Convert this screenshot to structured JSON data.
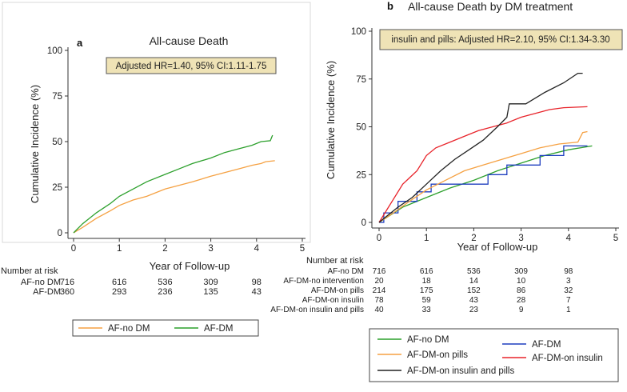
{
  "panel_a": {
    "letter": "a",
    "title": "All-cause Death",
    "hr_box": "Adjusted HR=1.40, 95% CI:1.11-1.75",
    "risk_header": "Number at risk",
    "risk_rows": [
      {
        "label": "AF-no DM",
        "values": [
          "716",
          "616",
          "536",
          "309",
          "98"
        ]
      },
      {
        "label": "AF-DM",
        "values": [
          "360",
          "293",
          "236",
          "135",
          "43"
        ]
      }
    ],
    "legend": [
      {
        "label": "AF-no DM",
        "color": "#f5a142"
      },
      {
        "label": "AF-DM",
        "color": "#2ca02c"
      }
    ]
  },
  "panel_b": {
    "letter": "b",
    "title": "All-cause Death by DM treatment",
    "hr_box": "insulin and pills: Adjusted HR=2.10, 95% CI:1.34-3.30",
    "risk_header": "Number at risk",
    "risk_rows": [
      {
        "label": "AF-no DM",
        "values": [
          "716",
          "616",
          "536",
          "309",
          "98"
        ]
      },
      {
        "label": "AF-DM-no intervention",
        "values": [
          "20",
          "18",
          "14",
          "10",
          "3"
        ]
      },
      {
        "label": "AF-DM-on pills",
        "values": [
          "214",
          "175",
          "152",
          "86",
          "32"
        ]
      },
      {
        "label": "AF-DM-on insulin",
        "values": [
          "78",
          "59",
          "43",
          "28",
          "7"
        ]
      },
      {
        "label": "AF-DM-on insulin and pills",
        "values": [
          "40",
          "33",
          "23",
          "9",
          "1"
        ]
      }
    ],
    "legend": [
      {
        "label": "AF-no DM",
        "color": "#2ca02c"
      },
      {
        "label": "AF-DM",
        "color": "#1f3fbf"
      },
      {
        "label": "AF-DM-on pills",
        "color": "#f5a142"
      },
      {
        "label": "AF-DM-on insulin",
        "color": "#e8232a"
      },
      {
        "label": "AF-DM-on insulin and pills",
        "color": "#222222"
      }
    ]
  },
  "chart_data": [
    {
      "type": "line",
      "title": "All-cause Death",
      "xlabel": "Year of Follow-up",
      "ylabel": "Cumulative Incidence (%)",
      "xlim": [
        0,
        5
      ],
      "ylim": [
        0,
        100
      ],
      "xticks": [
        "0",
        "1",
        "2",
        "3",
        "4",
        "5"
      ],
      "yticks": [
        "0",
        "25",
        "50",
        "75",
        "100"
      ],
      "series": [
        {
          "name": "AF-no DM",
          "color": "#f5a142",
          "x": [
            0,
            0.2,
            0.5,
            0.8,
            1.0,
            1.3,
            1.6,
            2.0,
            2.3,
            2.6,
            3.0,
            3.3,
            3.6,
            3.9,
            4.1,
            4.2,
            4.4
          ],
          "y": [
            0,
            3,
            8,
            12,
            15,
            18,
            20,
            24,
            26,
            28,
            31,
            33,
            35,
            37,
            38,
            39,
            39.5
          ]
        },
        {
          "name": "AF-DM",
          "color": "#2ca02c",
          "x": [
            0,
            0.2,
            0.5,
            0.8,
            1.0,
            1.3,
            1.6,
            2.0,
            2.3,
            2.6,
            3.0,
            3.3,
            3.6,
            3.9,
            4.1,
            4.3,
            4.35
          ],
          "y": [
            0,
            5,
            11,
            16,
            20,
            24,
            28,
            32,
            35,
            38,
            41,
            44,
            46,
            48,
            50,
            50.5,
            53.5
          ]
        }
      ]
    },
    {
      "type": "line",
      "title": "All-cause Death by DM treatment",
      "xlabel": "Year of Follow-up",
      "ylabel": "Cumulative Incidence (%)",
      "xlim": [
        0,
        5
      ],
      "ylim": [
        0,
        100
      ],
      "xticks": [
        "0",
        "1",
        "2",
        "3",
        "4",
        "5"
      ],
      "yticks": [
        "0",
        "25",
        "50",
        "75",
        "100"
      ],
      "series": [
        {
          "name": "AF-no DM",
          "color": "#2ca02c",
          "x": [
            0,
            0.5,
            1.0,
            1.5,
            2.0,
            2.5,
            3.0,
            3.5,
            4.0,
            4.5
          ],
          "y": [
            0,
            8,
            13,
            18,
            22,
            27,
            31,
            35,
            38,
            40
          ]
        },
        {
          "name": "AF-DM",
          "color": "#1f3fbf",
          "x": [
            0,
            0.1,
            0.1,
            0.4,
            0.4,
            0.8,
            0.8,
            1.1,
            1.1,
            1.6,
            1.6,
            2.3,
            2.3,
            2.7,
            2.7,
            3.4,
            3.4,
            3.9,
            3.9,
            4.4
          ],
          "y": [
            0,
            0,
            5,
            5,
            11,
            11,
            16,
            16,
            20,
            20,
            20,
            20,
            25,
            25,
            30,
            30,
            35,
            35,
            40,
            40
          ]
        },
        {
          "name": "AF-DM-on pills",
          "color": "#f5a142",
          "x": [
            0,
            0.3,
            0.7,
            1.0,
            1.4,
            1.8,
            2.2,
            2.6,
            3.0,
            3.4,
            3.8,
            4.2,
            4.3,
            4.4
          ],
          "y": [
            0,
            5,
            12,
            17,
            22,
            27,
            30,
            33,
            36,
            39,
            41,
            42,
            47,
            47.5
          ]
        },
        {
          "name": "AF-DM-on insulin",
          "color": "#e8232a",
          "x": [
            0,
            0.2,
            0.5,
            0.8,
            1.0,
            1.2,
            1.5,
            1.8,
            2.1,
            2.4,
            2.7,
            3.0,
            3.3,
            3.6,
            3.9,
            4.4
          ],
          "y": [
            0,
            8,
            20,
            27,
            35,
            39,
            42,
            45,
            48,
            50,
            52,
            55,
            57,
            59,
            60,
            60.5
          ]
        },
        {
          "name": "AF-DM-on insulin and pills",
          "color": "#222222",
          "x": [
            0,
            0.15,
            0.4,
            0.7,
            1.0,
            1.3,
            1.6,
            1.9,
            2.2,
            2.5,
            2.7,
            2.75,
            3.1,
            3.5,
            3.9,
            4.2,
            4.3
          ],
          "y": [
            0,
            3,
            8,
            13,
            20,
            27,
            33,
            38,
            43,
            50,
            55,
            62,
            62,
            68,
            73,
            78,
            78
          ]
        }
      ]
    }
  ]
}
